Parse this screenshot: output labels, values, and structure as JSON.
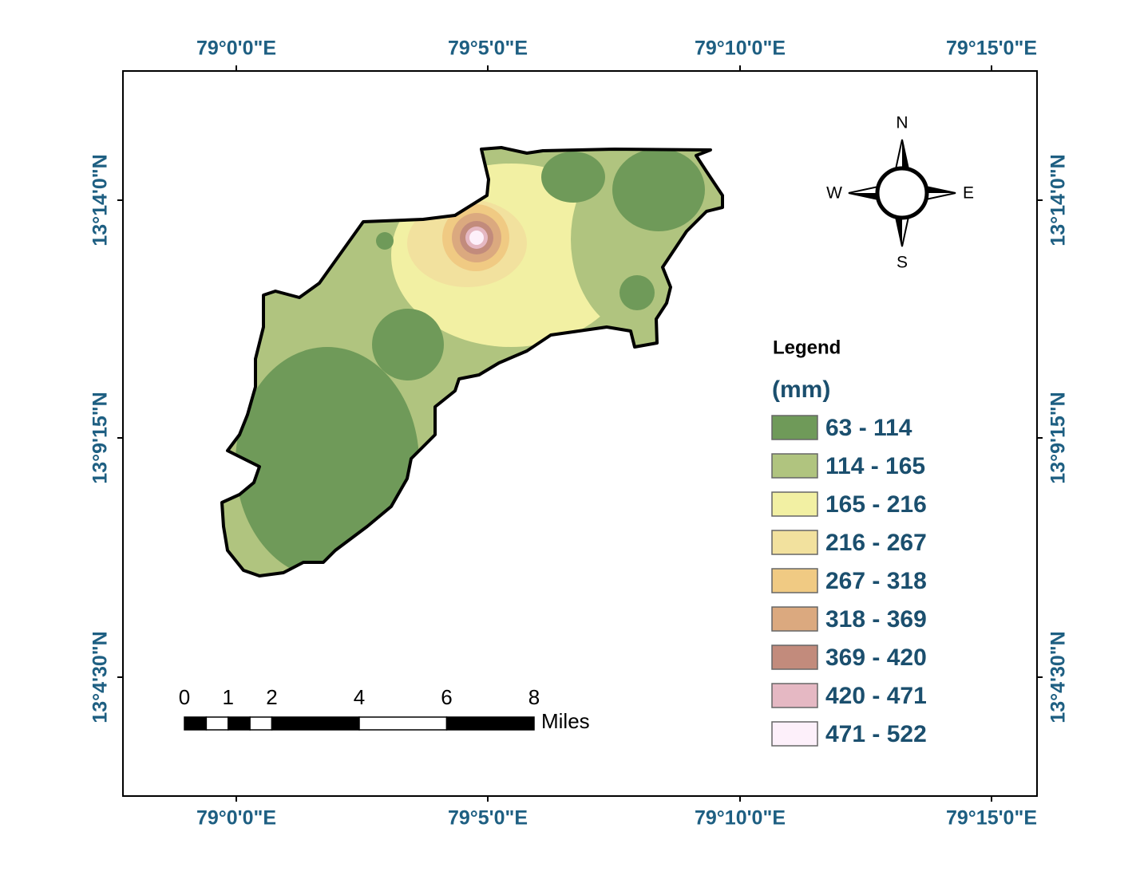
{
  "map": {
    "top_labels": [
      "79°0'0\"E",
      "79°5'0\"E",
      "79°10'0\"E",
      "79°15'0\"E"
    ],
    "bottom_labels": [
      "79°0'0\"E",
      "79°5'0\"E",
      "79°10'0\"E",
      "79°15'0\"E"
    ],
    "left_labels": [
      "13°14'0\"N",
      "13°9'15\"N",
      "13°4'30\"N"
    ],
    "right_labels": [
      "13°14'0\"N",
      "13°9'15\"N",
      "13°4'30\"N"
    ],
    "compass": {
      "north": "N",
      "east": "E",
      "south": "S",
      "west": "W"
    },
    "scale_bar": {
      "ticks": [
        0,
        1,
        2,
        4,
        6,
        8
      ],
      "unit": "Miles"
    },
    "legend": {
      "title": "Legend",
      "unit": "(mm)",
      "items": [
        {
          "label": "63 - 114",
          "color": "#6f9a59"
        },
        {
          "label": "114 - 165",
          "color": "#b0c47f"
        },
        {
          "label": "165 - 216",
          "color": "#f2f0a3"
        },
        {
          "label": "216 - 267",
          "color": "#f2e19e"
        },
        {
          "label": "267 - 318",
          "color": "#f0ca83"
        },
        {
          "label": "318 - 369",
          "color": "#dba97f"
        },
        {
          "label": "369 - 420",
          "color": "#c28b7c"
        },
        {
          "label": "420 - 471",
          "color": "#e5b8c3"
        },
        {
          "label": "471 - 522",
          "color": "#fdf0fa"
        }
      ]
    }
  }
}
